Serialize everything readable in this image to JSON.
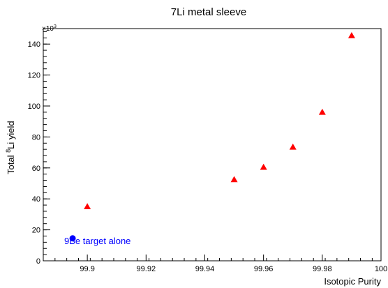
{
  "chart_data": {
    "type": "scatter",
    "title": "7Li metal sleeve",
    "xlabel": "Isotopic Purity",
    "ylabel_prefix": "Total ",
    "ylabel_sup": "8",
    "ylabel_suffix": "Li yield",
    "y_multiplier_base": "×10",
    "y_multiplier_exp": "3",
    "xlim": [
      99.885,
      100.0
    ],
    "ylim": [
      0,
      150
    ],
    "x_ticks": [
      99.9,
      99.92,
      99.94,
      99.96,
      99.98,
      100
    ],
    "x_tick_labels": [
      "99.9",
      "99.92",
      "99.94",
      "99.96",
      "99.98",
      "100"
    ],
    "y_ticks": [
      0,
      20,
      40,
      60,
      80,
      100,
      120,
      140
    ],
    "y_tick_labels": [
      "0",
      "20",
      "40",
      "60",
      "80",
      "100",
      "120",
      "140"
    ],
    "grid": false,
    "series": [
      {
        "marker": "triangle",
        "color": "#ff0000",
        "points": [
          {
            "x": 99.9,
            "y": 35
          },
          {
            "x": 99.95,
            "y": 52.5
          },
          {
            "x": 99.96,
            "y": 60.5
          },
          {
            "x": 99.97,
            "y": 73.5
          },
          {
            "x": 99.98,
            "y": 96
          },
          {
            "x": 99.99,
            "y": 145.5
          }
        ]
      },
      {
        "marker": "circle",
        "color": "#0000ff",
        "points": [
          {
            "x": 99.895,
            "y": 14.5
          }
        ]
      }
    ],
    "annotations": [
      {
        "text": "9Be target alone",
        "color": "#0000ff"
      }
    ]
  }
}
